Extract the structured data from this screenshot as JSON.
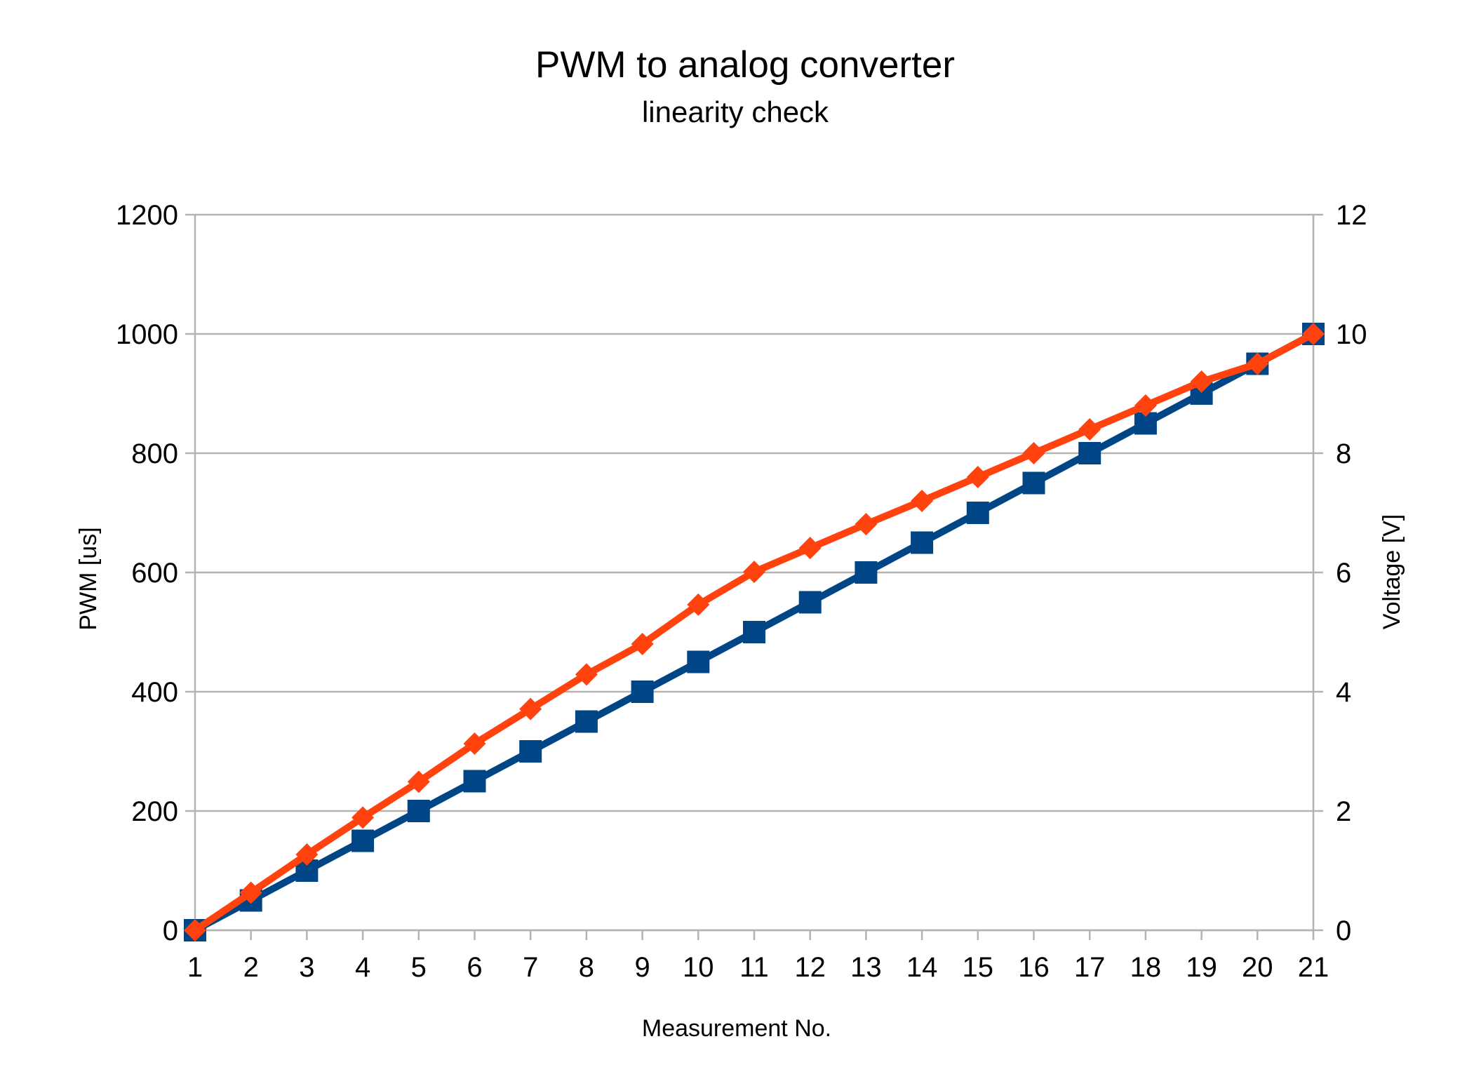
{
  "chart_data": {
    "type": "line",
    "title": "PWM to analog converter",
    "subtitle": "linearity check",
    "xlabel": "Measurement No.",
    "ylabel": "PWM [us]",
    "y2label": "Voltage [V]",
    "categories": [
      "1",
      "2",
      "3",
      "4",
      "5",
      "6",
      "7",
      "8",
      "9",
      "10",
      "11",
      "12",
      "13",
      "14",
      "15",
      "16",
      "17",
      "18",
      "19",
      "20",
      "21"
    ],
    "ylim": [
      0,
      1200
    ],
    "y2lim": [
      0,
      12
    ],
    "yticks": [
      "0",
      "200",
      "400",
      "600",
      "800",
      "1000",
      "1200"
    ],
    "y2ticks": [
      "0",
      "2",
      "4",
      "6",
      "8",
      "10",
      "12"
    ],
    "grid": true,
    "legend": "none",
    "series": [
      {
        "axis": "left",
        "color": "#004586",
        "marker": "square",
        "values": [
          0,
          50,
          100,
          150,
          200,
          250,
          300,
          350,
          400,
          450,
          500,
          550,
          600,
          650,
          700,
          750,
          800,
          850,
          900,
          950,
          1000
        ]
      },
      {
        "axis": "right",
        "color": "#ff420e",
        "marker": "diamond",
        "values": [
          0,
          0.63,
          1.27,
          1.89,
          2.49,
          3.13,
          3.71,
          4.29,
          4.8,
          5.46,
          6.01,
          6.41,
          6.81,
          7.2,
          7.6,
          8.0,
          8.4,
          8.8,
          9.2,
          9.5,
          10.0
        ]
      }
    ]
  }
}
